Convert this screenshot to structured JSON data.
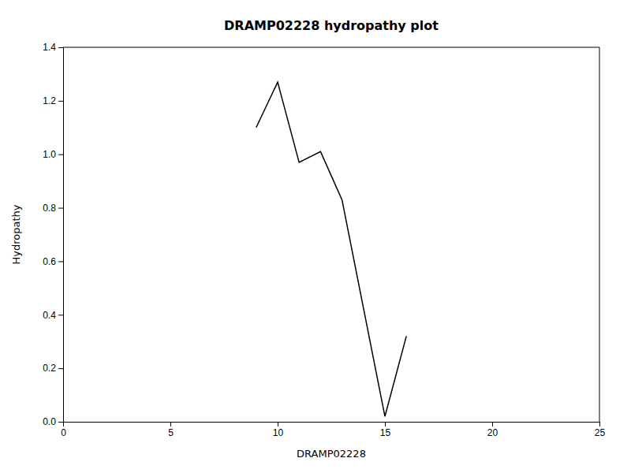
{
  "chart_data": {
    "type": "line",
    "title": "DRAMP02228 hydropathy plot",
    "xlabel": "DRAMP02228",
    "ylabel": "Hydropathy",
    "xlim": [
      0,
      25
    ],
    "ylim": [
      0,
      1.4
    ],
    "xticks": [
      0,
      5,
      10,
      15,
      20,
      25
    ],
    "yticks": [
      {
        "value": 0.0,
        "label": "0.0"
      },
      0.2,
      0.4,
      0.6,
      0.8,
      {
        "value": 1.0,
        "label": "1.0"
      },
      1.2,
      1.4
    ],
    "x": [
      9,
      10,
      11,
      12,
      13,
      15,
      16
    ],
    "values": [
      1.1,
      1.27,
      0.97,
      1.01,
      0.83,
      0.02,
      0.32
    ],
    "color": "#000000",
    "grid": false
  }
}
